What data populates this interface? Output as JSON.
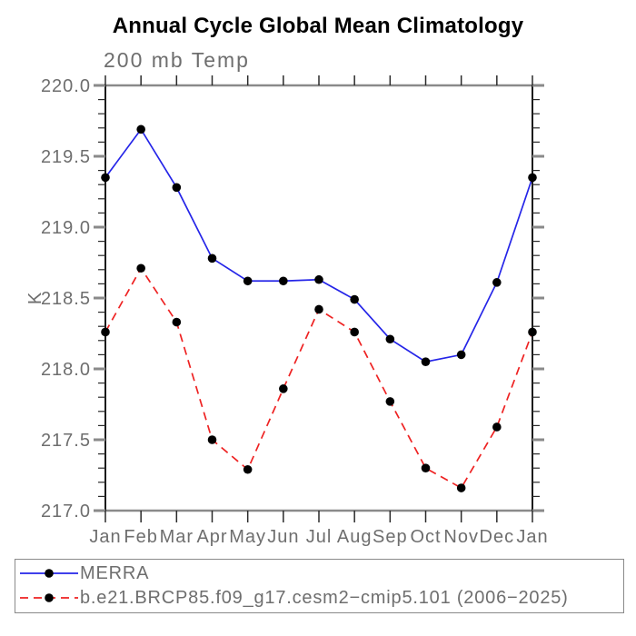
{
  "page": {
    "background_color": "#ffffff"
  },
  "chart_data": {
    "type": "line",
    "title": "Annual Cycle Global Mean Climatology",
    "subtitle": "200 mb Temp",
    "xlabel": "",
    "ylabel": "K",
    "categories": [
      "Jan",
      "Feb",
      "Mar",
      "Apr",
      "May",
      "Jun",
      "Jul",
      "Aug",
      "Sep",
      "Oct",
      "Nov",
      "Dec",
      "Jan"
    ],
    "ylim": [
      217.0,
      220.0
    ],
    "y_major_step": 0.5,
    "y_minor_step": 0.1,
    "y_tick_label_format": "one_decimal",
    "grid": false,
    "legend_position": "bottom-left-box",
    "series": [
      {
        "name": "MERRA",
        "line_color": "#2525e8",
        "line_style": "solid",
        "marker": "filled-circle",
        "marker_color": "#000000",
        "values": [
          219.35,
          219.69,
          219.28,
          218.78,
          218.62,
          218.62,
          218.63,
          218.49,
          218.21,
          218.05,
          218.1,
          218.61,
          219.35
        ]
      },
      {
        "name": "b.e21.BRCP85.f09_g17.cesm2−cmip5.101 (2006−2025)",
        "line_color": "#ee2222",
        "line_style": "dashed",
        "marker": "filled-circle",
        "marker_color": "#000000",
        "values": [
          218.26,
          218.71,
          218.33,
          217.5,
          217.29,
          217.86,
          218.42,
          218.26,
          217.77,
          217.3,
          217.16,
          217.59,
          218.26
        ]
      }
    ],
    "style_colors": {
      "text_gray": "#6e6e6e",
      "axis_horizontal": "#8a8a8a",
      "axis_vertical": "#1a1a1a",
      "major_tick": "#8a8a8a",
      "minor_tick": "#2a2a2a",
      "month_tick": "#2a2a2a"
    }
  }
}
